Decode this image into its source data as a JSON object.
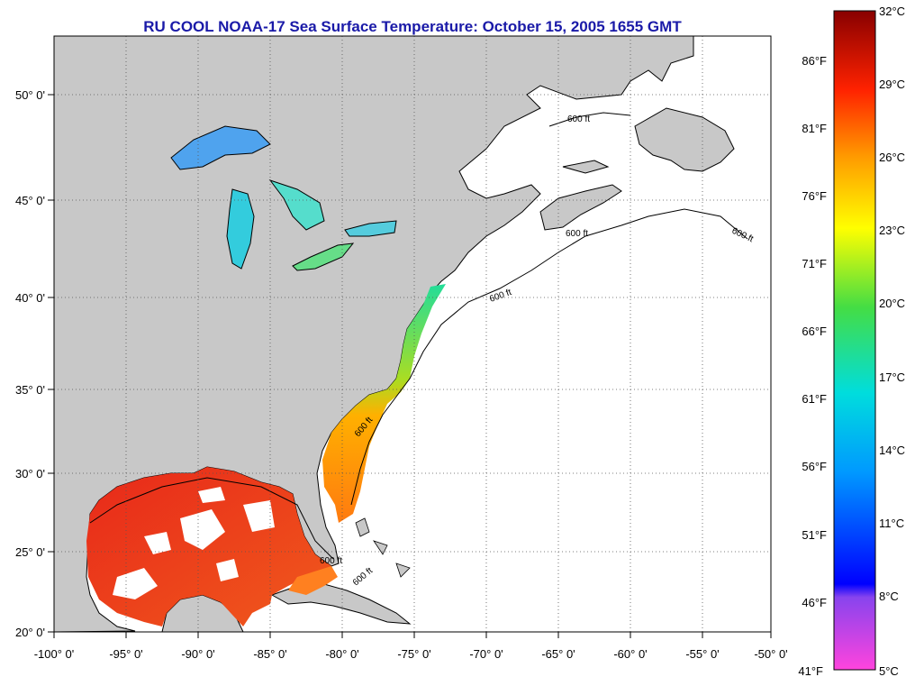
{
  "title": "RU COOL  NOAA-17  Sea Surface Temperature:  October 15, 2005 1655 GMT",
  "map": {
    "lon_range": [
      -100,
      -50
    ],
    "lat_range": [
      20,
      52
    ],
    "lon_ticks": [
      "-100° 0'",
      "-95° 0'",
      "-90° 0'",
      "-85° 0'",
      "-80° 0'",
      "-75° 0'",
      "-70° 0'",
      "-65° 0'",
      "-60° 0'",
      "-55° 0'",
      "-50° 0'"
    ],
    "lat_ticks": [
      "20° 0'",
      "25° 0'",
      "30° 0'",
      "35° 0'",
      "40° 0'",
      "45° 0'",
      "50° 0'"
    ],
    "contour_labels": [
      "600 ft",
      "600 ft",
      "600 ft",
      "600 ft",
      "600 ft",
      "600 ft",
      "600 ft"
    ],
    "colors": {
      "land": "#c8c8c8",
      "ocean_nodata": "#ffffff",
      "coast": "#000000",
      "grid": "#555555"
    }
  },
  "colorbar": {
    "range_c": [
      5,
      32
    ],
    "celsius_labels": [
      "32°C",
      "29°C",
      "26°C",
      "23°C",
      "20°C",
      "17°C",
      "14°C",
      "11°C",
      "8°C",
      "5°C"
    ],
    "fahrenheit_labels": [
      "86°F",
      "81°F",
      "76°F",
      "71°F",
      "66°F",
      "61°F",
      "56°F",
      "51°F",
      "46°F",
      "41°F"
    ]
  }
}
